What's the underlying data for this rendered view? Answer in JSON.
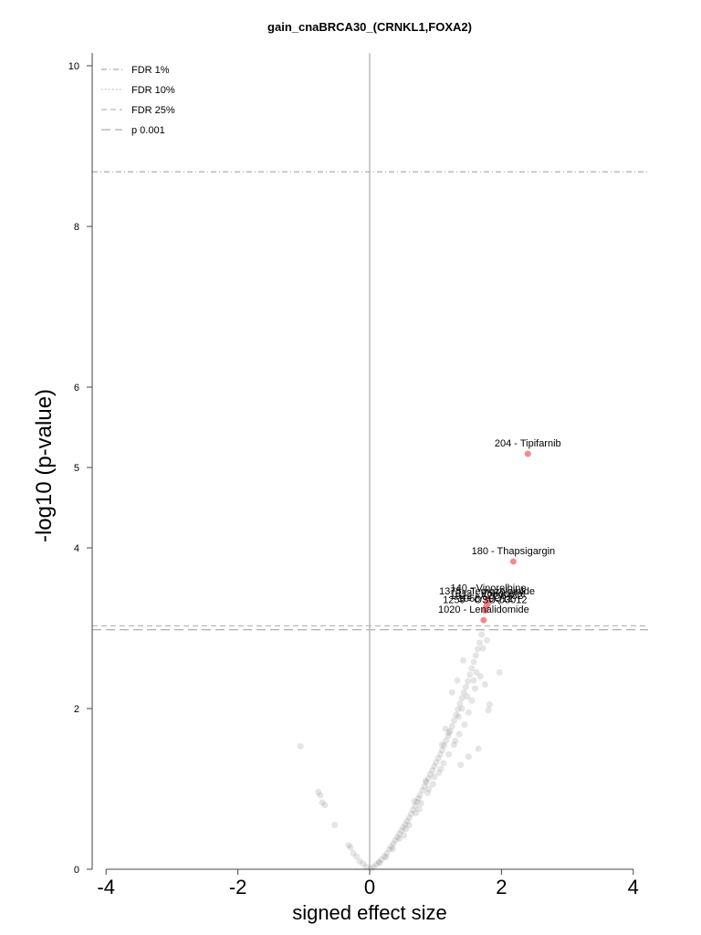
{
  "chart_data": {
    "type": "scatter",
    "title": "gain_cnaBRCA30_(CRNKL1,FOXA2)",
    "xlabel": "signed effect size",
    "ylabel": "-log10 (p-value)",
    "xlim": [
      -4.2,
      4.2
    ],
    "ylim": [
      0,
      10.2
    ],
    "x_ticks": [
      -4,
      -2,
      0,
      2,
      4
    ],
    "y_ticks": [
      0,
      2,
      4,
      5,
      6,
      8,
      10
    ],
    "grid": false,
    "legend_position": "top-left",
    "legend": [
      {
        "label": "FDR 1%",
        "style": "dash-dot",
        "color": "#999999"
      },
      {
        "label": "FDR 10%",
        "style": "dotted",
        "color": "#aaaaaa"
      },
      {
        "label": "FDR 25%",
        "style": "dashed",
        "color": "#aaaaaa"
      },
      {
        "label": "p 0.001",
        "style": "long-dash",
        "color": "#999999"
      }
    ],
    "threshold_lines": [
      {
        "name": "FDR 1%",
        "y": 8.68,
        "style": "dash-dot",
        "color": "#999999"
      },
      {
        "name": "FDR 25%",
        "y": 3.03,
        "style": "dashed",
        "color": "#aaaaaa"
      },
      {
        "name": "p 0.001",
        "y": 2.98,
        "style": "long-dash",
        "color": "#999999"
      }
    ],
    "zero_line_x": 0,
    "highlight_color": "#f08080",
    "background_color": "#888888",
    "highlighted_points": [
      {
        "x": 2.4,
        "y": 5.17,
        "label": "204 - Tipifarnib"
      },
      {
        "x": 2.18,
        "y": 3.83,
        "label": "180 - Thapsigargin"
      },
      {
        "x": 1.8,
        "y": 3.37,
        "label": "140 - Vinorelbine"
      },
      {
        "x": 1.78,
        "y": 3.33,
        "label": "1375 - Temozolomide"
      },
      {
        "x": 1.79,
        "y": 3.3,
        "label": "1012 - Vorinostat"
      },
      {
        "x": 1.77,
        "y": 3.27,
        "label": "1022 - AZD6482"
      },
      {
        "x": 1.76,
        "y": 3.24,
        "label": "1068 - JQ12"
      },
      {
        "x": 1.75,
        "y": 3.22,
        "label": "1259 - OSU-03012"
      },
      {
        "x": 1.73,
        "y": 3.1,
        "label": "1020 - Lenalidomide"
      }
    ],
    "points": [
      {
        "x": -1.05,
        "y": 1.53
      },
      {
        "x": -0.78,
        "y": 0.96
      },
      {
        "x": -0.75,
        "y": 0.92
      },
      {
        "x": -0.72,
        "y": 0.83
      },
      {
        "x": -0.68,
        "y": 0.8
      },
      {
        "x": -0.53,
        "y": 0.55
      },
      {
        "x": -0.32,
        "y": 0.3
      },
      {
        "x": -0.29,
        "y": 0.27
      },
      {
        "x": -0.25,
        "y": 0.2
      },
      {
        "x": -0.2,
        "y": 0.16
      },
      {
        "x": -0.15,
        "y": 0.1
      },
      {
        "x": -0.1,
        "y": 0.07
      },
      {
        "x": -0.05,
        "y": 0.03
      },
      {
        "x": 0.02,
        "y": 0.01
      },
      {
        "x": 0.06,
        "y": 0.03
      },
      {
        "x": 0.1,
        "y": 0.06
      },
      {
        "x": 0.14,
        "y": 0.09
      },
      {
        "x": 0.18,
        "y": 0.12
      },
      {
        "x": 0.22,
        "y": 0.16
      },
      {
        "x": 0.26,
        "y": 0.2
      },
      {
        "x": 0.3,
        "y": 0.25
      },
      {
        "x": 0.33,
        "y": 0.28
      },
      {
        "x": 0.36,
        "y": 0.32
      },
      {
        "x": 0.39,
        "y": 0.36
      },
      {
        "x": 0.42,
        "y": 0.4
      },
      {
        "x": 0.45,
        "y": 0.44
      },
      {
        "x": 0.48,
        "y": 0.48
      },
      {
        "x": 0.51,
        "y": 0.52
      },
      {
        "x": 0.54,
        "y": 0.56
      },
      {
        "x": 0.57,
        "y": 0.6
      },
      {
        "x": 0.6,
        "y": 0.64
      },
      {
        "x": 0.63,
        "y": 0.69
      },
      {
        "x": 0.66,
        "y": 0.74
      },
      {
        "x": 0.69,
        "y": 0.79
      },
      {
        "x": 0.72,
        "y": 0.84
      },
      {
        "x": 0.74,
        "y": 0.88
      },
      {
        "x": 0.76,
        "y": 0.92
      },
      {
        "x": 0.8,
        "y": 0.98
      },
      {
        "x": 0.83,
        "y": 1.03
      },
      {
        "x": 0.86,
        "y": 1.08
      },
      {
        "x": 0.89,
        "y": 1.13
      },
      {
        "x": 0.92,
        "y": 1.18
      },
      {
        "x": 0.95,
        "y": 1.23
      },
      {
        "x": 0.98,
        "y": 1.28
      },
      {
        "x": 1.01,
        "y": 1.33
      },
      {
        "x": 1.04,
        "y": 1.38
      },
      {
        "x": 1.07,
        "y": 1.43
      },
      {
        "x": 1.1,
        "y": 1.48
      },
      {
        "x": 1.13,
        "y": 1.54
      },
      {
        "x": 1.16,
        "y": 1.6
      },
      {
        "x": 1.19,
        "y": 1.66
      },
      {
        "x": 1.22,
        "y": 1.72
      },
      {
        "x": 1.25,
        "y": 1.78
      },
      {
        "x": 1.28,
        "y": 1.85
      },
      {
        "x": 1.31,
        "y": 1.92
      },
      {
        "x": 1.34,
        "y": 1.99
      },
      {
        "x": 1.37,
        "y": 2.06
      },
      {
        "x": 1.4,
        "y": 2.13
      },
      {
        "x": 1.43,
        "y": 2.2
      },
      {
        "x": 1.46,
        "y": 2.27
      },
      {
        "x": 1.49,
        "y": 2.34
      },
      {
        "x": 1.52,
        "y": 2.42
      },
      {
        "x": 1.55,
        "y": 2.5
      },
      {
        "x": 1.58,
        "y": 2.58
      },
      {
        "x": 1.61,
        "y": 2.66
      },
      {
        "x": 1.64,
        "y": 2.74
      },
      {
        "x": 1.67,
        "y": 2.82
      },
      {
        "x": 1.7,
        "y": 2.92
      },
      {
        "x": 0.52,
        "y": 0.42
      },
      {
        "x": 0.6,
        "y": 0.55
      },
      {
        "x": 0.7,
        "y": 0.7
      },
      {
        "x": 0.78,
        "y": 0.82
      },
      {
        "x": 0.88,
        "y": 0.95
      },
      {
        "x": 0.96,
        "y": 1.06
      },
      {
        "x": 1.05,
        "y": 1.2
      },
      {
        "x": 1.12,
        "y": 1.32
      },
      {
        "x": 1.2,
        "y": 1.43
      },
      {
        "x": 1.28,
        "y": 1.55
      },
      {
        "x": 1.36,
        "y": 1.68
      },
      {
        "x": 1.44,
        "y": 1.8
      },
      {
        "x": 1.5,
        "y": 1.95
      },
      {
        "x": 1.15,
        "y": 1.75
      },
      {
        "x": 1.2,
        "y": 1.7
      },
      {
        "x": 1.25,
        "y": 2.2
      },
      {
        "x": 1.33,
        "y": 2.35
      },
      {
        "x": 1.42,
        "y": 2.6
      },
      {
        "x": 1.55,
        "y": 2.1
      },
      {
        "x": 1.6,
        "y": 2.25
      },
      {
        "x": 1.72,
        "y": 2.75
      },
      {
        "x": 1.78,
        "y": 2.85
      },
      {
        "x": 1.82,
        "y": 2.05
      },
      {
        "x": 1.8,
        "y": 1.98
      },
      {
        "x": 1.97,
        "y": 2.45
      },
      {
        "x": 1.38,
        "y": 1.3
      },
      {
        "x": 1.5,
        "y": 1.4
      },
      {
        "x": 1.65,
        "y": 1.5
      },
      {
        "x": 1.1,
        "y": 1.55
      },
      {
        "x": 1.3,
        "y": 1.6
      },
      {
        "x": 1.08,
        "y": 1.25
      },
      {
        "x": 0.98,
        "y": 1.15
      },
      {
        "x": 0.9,
        "y": 1.0
      },
      {
        "x": 0.85,
        "y": 1.1
      },
      {
        "x": 0.75,
        "y": 0.75
      },
      {
        "x": 0.68,
        "y": 0.85
      },
      {
        "x": 0.55,
        "y": 0.5
      },
      {
        "x": 0.45,
        "y": 0.38
      },
      {
        "x": 0.35,
        "y": 0.25
      },
      {
        "x": 0.25,
        "y": 0.15
      },
      {
        "x": 0.15,
        "y": 0.08
      },
      {
        "x": 1.62,
        "y": 2.45
      },
      {
        "x": 1.58,
        "y": 2.35
      },
      {
        "x": 1.48,
        "y": 2.15
      },
      {
        "x": 1.4,
        "y": 2.0
      },
      {
        "x": 1.35,
        "y": 1.9
      },
      {
        "x": 1.75,
        "y": 2.3
      },
      {
        "x": 1.68,
        "y": 2.4
      }
    ]
  }
}
